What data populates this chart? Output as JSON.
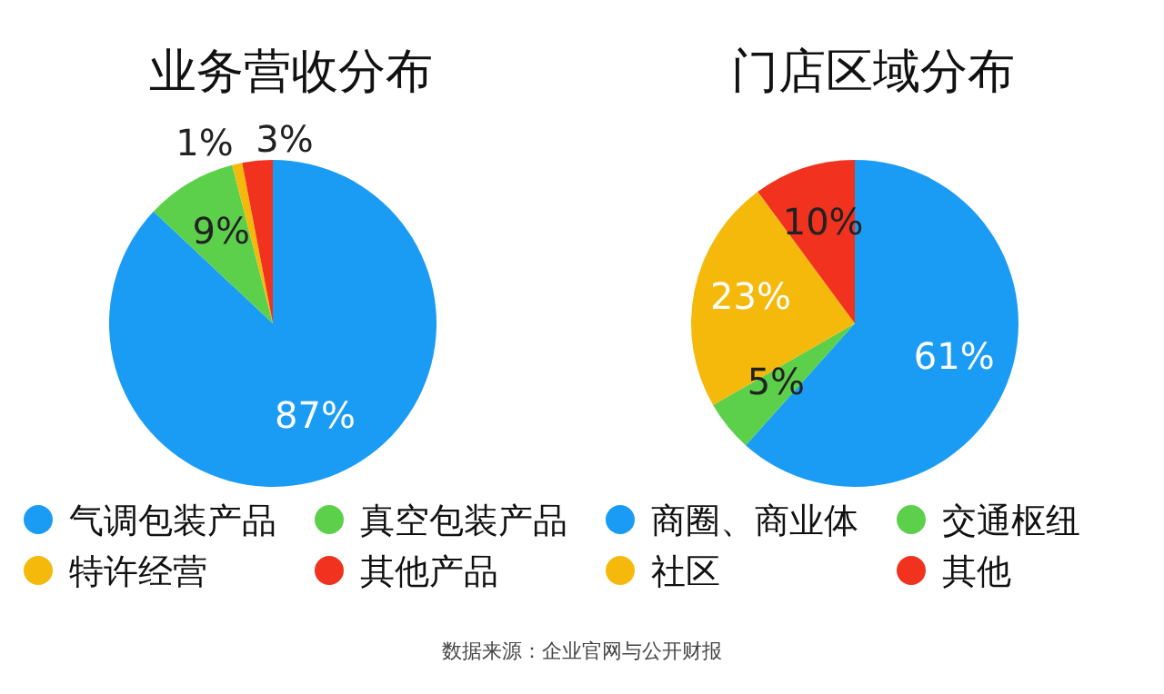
{
  "chart_data": [
    {
      "type": "pie",
      "title": "业务营收分布",
      "categories": [
        "气调包装产品",
        "真空包装产品",
        "特许经营",
        "其他产品"
      ],
      "values": [
        87,
        9,
        1,
        3
      ],
      "value_labels": [
        "87%",
        "9%",
        "1%",
        "3%"
      ],
      "colors": [
        "#1a9cf5",
        "#5cd04a",
        "#f5b90c",
        "#f0321e"
      ],
      "legend": "bottom"
    },
    {
      "type": "pie",
      "title": "门店区域分布",
      "categories": [
        "商圈、商业体",
        "交通枢纽",
        "社区",
        "其他"
      ],
      "values": [
        61,
        5,
        23,
        10
      ],
      "value_labels": [
        "61%",
        "5%",
        "23%",
        "10%"
      ],
      "colors": [
        "#1a9cf5",
        "#5cd04a",
        "#f5b90c",
        "#f0321e"
      ],
      "legend": "bottom",
      "annotations": [
        "数据来源：企业官网与公开财报"
      ]
    }
  ]
}
